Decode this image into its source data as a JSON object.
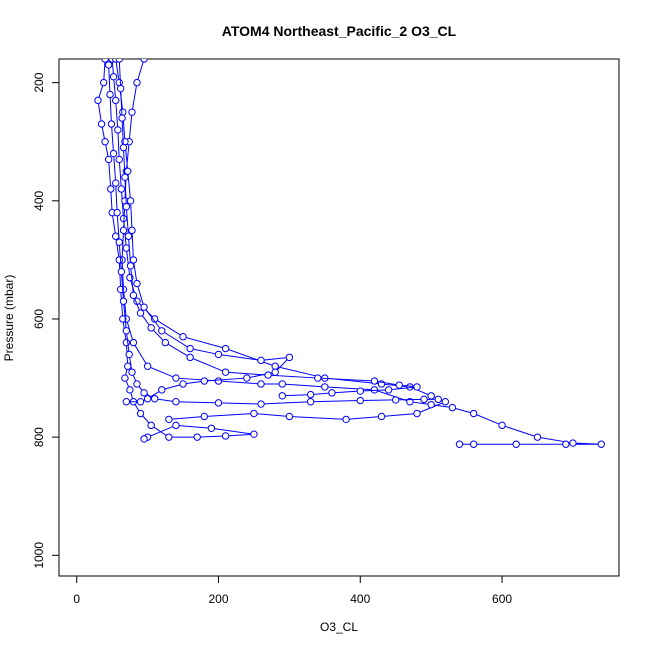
{
  "chart_data": {
    "type": "line",
    "title": "ATOM4 Northeast_Pacific_2 O3_CL",
    "xlabel": "O3_CL",
    "ylabel": "Pressure (mbar)",
    "xlim": [
      -25,
      765
    ],
    "ylim": [
      1035,
      160
    ],
    "y_reversed": true,
    "x_ticks": [
      0,
      200,
      400,
      600
    ],
    "y_ticks": [
      200,
      400,
      600,
      800,
      1000
    ],
    "grid": false,
    "legend": "none",
    "marker": "open-circle",
    "line_color": "#0000ff",
    "series": [
      {
        "points": [
          [
            50,
            160
          ],
          [
            52,
            190
          ],
          [
            55,
            230
          ],
          [
            58,
            280
          ],
          [
            60,
            330
          ],
          [
            63,
            380
          ],
          [
            66,
            430
          ],
          [
            70,
            480
          ],
          [
            75,
            530
          ],
          [
            85,
            570
          ],
          [
            110,
            600
          ],
          [
            150,
            630
          ],
          [
            210,
            650
          ],
          [
            280,
            680
          ],
          [
            350,
            700
          ],
          [
            430,
            710
          ],
          [
            470,
            715
          ],
          [
            500,
            730
          ],
          [
            520,
            740
          ],
          [
            480,
            760
          ],
          [
            430,
            765
          ],
          [
            380,
            770
          ],
          [
            300,
            765
          ],
          [
            250,
            760
          ],
          [
            180,
            765
          ],
          [
            130,
            770
          ]
        ]
      },
      {
        "points": [
          [
            95,
            160
          ],
          [
            85,
            200
          ],
          [
            78,
            250
          ],
          [
            74,
            300
          ],
          [
            70,
            350
          ],
          [
            68,
            400
          ],
          [
            66,
            450
          ],
          [
            64,
            500
          ],
          [
            66,
            550
          ],
          [
            70,
            600
          ],
          [
            80,
            640
          ],
          [
            100,
            680
          ],
          [
            140,
            700
          ],
          [
            200,
            705
          ],
          [
            260,
            710
          ],
          [
            290,
            710
          ],
          [
            350,
            715
          ],
          [
            420,
            720
          ],
          [
            470,
            740
          ],
          [
            500,
            745
          ],
          [
            530,
            750
          ],
          [
            560,
            760
          ],
          [
            600,
            780
          ],
          [
            650,
            800
          ],
          [
            700,
            810
          ],
          [
            740,
            812
          ],
          [
            690,
            812
          ],
          [
            620,
            812
          ],
          [
            560,
            812
          ],
          [
            540,
            812
          ]
        ]
      },
      {
        "points": [
          [
            40,
            160
          ],
          [
            38,
            200
          ],
          [
            30,
            230
          ],
          [
            35,
            270
          ],
          [
            40,
            300
          ],
          [
            45,
            330
          ],
          [
            48,
            380
          ],
          [
            50,
            420
          ],
          [
            55,
            460
          ],
          [
            60,
            500
          ],
          [
            62,
            550
          ],
          [
            65,
            600
          ],
          [
            70,
            640
          ],
          [
            72,
            680
          ],
          [
            68,
            700
          ],
          [
            75,
            720
          ],
          [
            80,
            740
          ],
          [
            90,
            760
          ],
          [
            105,
            780
          ],
          [
            130,
            800
          ],
          [
            170,
            800
          ],
          [
            210,
            798
          ],
          [
            250,
            795
          ],
          [
            190,
            785
          ],
          [
            140,
            780
          ],
          [
            100,
            800
          ],
          [
            95,
            803
          ]
        ]
      },
      {
        "points": [
          [
            55,
            160
          ],
          [
            60,
            200
          ],
          [
            65,
            250
          ],
          [
            68,
            300
          ],
          [
            72,
            350
          ],
          [
            76,
            400
          ],
          [
            78,
            450
          ],
          [
            80,
            500
          ],
          [
            85,
            540
          ],
          [
            95,
            580
          ],
          [
            120,
            620
          ],
          [
            160,
            650
          ],
          [
            200,
            660
          ],
          [
            260,
            670
          ],
          [
            300,
            665
          ],
          [
            280,
            690
          ],
          [
            240,
            700
          ],
          [
            180,
            705
          ],
          [
            150,
            710
          ],
          [
            120,
            720
          ],
          [
            100,
            735
          ],
          [
            90,
            740
          ],
          [
            70,
            740
          ]
        ]
      },
      {
        "points": [
          [
            60,
            160
          ],
          [
            62,
            210
          ],
          [
            64,
            260
          ],
          [
            66,
            310
          ],
          [
            68,
            360
          ],
          [
            70,
            410
          ],
          [
            73,
            460
          ],
          [
            76,
            510
          ],
          [
            80,
            560
          ],
          [
            90,
            590
          ],
          [
            105,
            615
          ],
          [
            125,
            640
          ],
          [
            160,
            665
          ],
          [
            210,
            690
          ],
          [
            270,
            695
          ],
          [
            340,
            700
          ],
          [
            420,
            705
          ],
          [
            455,
            712
          ],
          [
            480,
            715
          ],
          [
            440,
            720
          ],
          [
            400,
            722
          ],
          [
            360,
            725
          ],
          [
            330,
            728
          ],
          [
            290,
            730
          ]
        ]
      },
      {
        "points": [
          [
            45,
            170
          ],
          [
            47,
            220
          ],
          [
            49,
            270
          ],
          [
            52,
            320
          ],
          [
            55,
            370
          ],
          [
            57,
            420
          ],
          [
            60,
            470
          ],
          [
            63,
            520
          ],
          [
            66,
            570
          ],
          [
            70,
            620
          ],
          [
            74,
            660
          ],
          [
            78,
            690
          ],
          [
            85,
            710
          ],
          [
            95,
            725
          ],
          [
            110,
            735
          ],
          [
            140,
            740
          ],
          [
            200,
            742
          ],
          [
            260,
            744
          ],
          [
            330,
            740
          ],
          [
            400,
            738
          ],
          [
            450,
            737
          ],
          [
            490,
            736
          ],
          [
            510,
            736
          ]
        ]
      }
    ]
  }
}
